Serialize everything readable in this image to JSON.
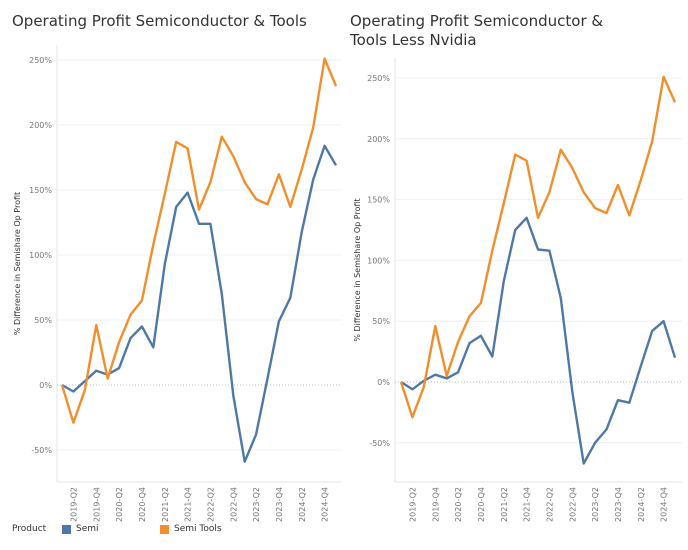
{
  "chart_data": [
    {
      "type": "line",
      "title": "Operating Profit Semiconductor & Tools",
      "ylabel": "% Difference in Semishare Op Profit",
      "ylim": [
        -65,
        260
      ],
      "yticks": [
        "-50%",
        "0%",
        "50%",
        "100%",
        "150%",
        "200%",
        "250%"
      ],
      "ytick_values": [
        -50,
        0,
        50,
        100,
        150,
        200,
        250
      ],
      "xtick_labels": [
        "2019-Q2",
        "2019-Q4",
        "2020-Q2",
        "2020-Q4",
        "2021-Q2",
        "2021-Q4",
        "2022-Q2",
        "2022-Q4",
        "2023-Q2",
        "2023-Q4",
        "2024-Q2",
        "2024-Q4"
      ],
      "x": [
        "2019-Q1",
        "2019-Q2",
        "2019-Q3",
        "2019-Q4",
        "2020-Q1",
        "2020-Q2",
        "2020-Q3",
        "2020-Q4",
        "2021-Q1",
        "2021-Q2",
        "2021-Q3",
        "2021-Q4",
        "2022-Q1",
        "2022-Q2",
        "2022-Q3",
        "2022-Q4",
        "2023-Q1",
        "2023-Q2",
        "2023-Q3",
        "2023-Q4",
        "2024-Q1",
        "2024-Q2",
        "2024-Q3",
        "2024-Q4",
        "2025-Q1"
      ],
      "series": [
        {
          "name": "Semi",
          "color": "#4e79a7",
          "values": [
            0,
            -5,
            3,
            11,
            8,
            13,
            36,
            45,
            29,
            93,
            137,
            148,
            124,
            124,
            70,
            -8,
            -59,
            -38,
            5,
            49,
            67,
            118,
            158,
            184,
            169
          ]
        },
        {
          "name": "Semi Tools",
          "color": "#f28e2b",
          "values": [
            0,
            -29,
            -4,
            46,
            5,
            33,
            54,
            65,
            108,
            147,
            187,
            182,
            135,
            156,
            191,
            176,
            156,
            143,
            139,
            162,
            137,
            166,
            198,
            251,
            230
          ]
        }
      ]
    },
    {
      "type": "line",
      "title": "Operating Profit Semiconductor & Tools Less Nvidia",
      "ylabel": "% Difference in Semishare Op Profit",
      "ylim": [
        -82,
        280
      ],
      "yticks": [
        "-50%",
        "0%",
        "50%",
        "100%",
        "150%",
        "200%",
        "250%"
      ],
      "ytick_values": [
        -50,
        0,
        50,
        100,
        150,
        200,
        250
      ],
      "xtick_labels": [
        "2019-Q2",
        "2019-Q4",
        "2020-Q2",
        "2020-Q4",
        "2021-Q2",
        "2021-Q4",
        "2022-Q2",
        "2022-Q4",
        "2023-Q2",
        "2023-Q4",
        "2024-Q2",
        "2024-Q4"
      ],
      "x": [
        "2019-Q1",
        "2019-Q2",
        "2019-Q3",
        "2019-Q4",
        "2020-Q1",
        "2020-Q2",
        "2020-Q3",
        "2020-Q4",
        "2021-Q1",
        "2021-Q2",
        "2021-Q3",
        "2021-Q4",
        "2022-Q1",
        "2022-Q2",
        "2022-Q3",
        "2022-Q4",
        "2023-Q1",
        "2023-Q2",
        "2023-Q3",
        "2023-Q4",
        "2024-Q1",
        "2024-Q2",
        "2024-Q3",
        "2024-Q4",
        "2025-Q1"
      ],
      "series": [
        {
          "name": "Semi",
          "color": "#4e79a7",
          "values": [
            0,
            -6,
            1,
            6,
            3,
            8,
            32,
            38,
            21,
            83,
            125,
            135,
            109,
            108,
            69,
            -8,
            -67,
            -50,
            -39,
            -15,
            -17,
            13,
            42,
            50,
            20
          ]
        },
        {
          "name": "Semi Tools",
          "color": "#f28e2b",
          "values": [
            0,
            -29,
            -4,
            46,
            5,
            33,
            54,
            65,
            108,
            147,
            187,
            182,
            135,
            156,
            191,
            176,
            156,
            143,
            139,
            162,
            137,
            166,
            198,
            251,
            230
          ]
        }
      ]
    }
  ],
  "legend": {
    "title": "Product",
    "items": [
      {
        "label": "Semi",
        "color": "#4e79a7"
      },
      {
        "label": "Semi Tools",
        "color": "#f28e2b"
      }
    ]
  }
}
